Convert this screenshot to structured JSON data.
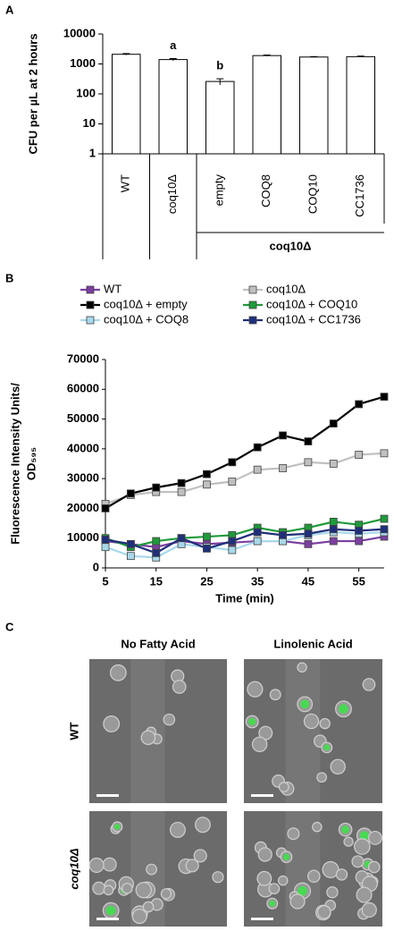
{
  "panel_labels": [
    "A",
    "B",
    "C"
  ],
  "chart_data": [
    {
      "type": "bar",
      "y_label": "CFU per µL at 2 hours",
      "categories": [
        "WT",
        "coq10Δ",
        "empty",
        "COQ8",
        "COQ10",
        "CC1736"
      ],
      "values": [
        2100,
        1400,
        260,
        1900,
        1700,
        1750
      ],
      "errors": [
        120,
        110,
        60,
        80,
        60,
        80
      ],
      "annotations": [
        null,
        "a",
        "b",
        null,
        null,
        null
      ],
      "group_label": "coq10Δ",
      "color": "#ffffff",
      "log_scale": true,
      "ylim": [
        1,
        10000
      ],
      "yticks": [
        1,
        10,
        100,
        1000,
        10000
      ]
    },
    {
      "type": "line",
      "y_label": [
        "Fluorescence Intensity Units/",
        "OD₅₉₅"
      ],
      "x_label": "Time (min)",
      "x": [
        5,
        10,
        15,
        20,
        25,
        30,
        35,
        40,
        45,
        50,
        55,
        60
      ],
      "series": [
        {
          "name": "WT",
          "color": "#7b3fa0",
          "values": [
            9000,
            8000,
            7000,
            9000,
            8000,
            8500,
            9000,
            9000,
            8000,
            9000,
            9000,
            10500
          ]
        },
        {
          "name": "coq10Δ",
          "color": "#c0c0c0",
          "values": [
            21500,
            24500,
            25500,
            25500,
            28000,
            29000,
            33000,
            33500,
            35500,
            35000,
            38000,
            38500
          ]
        },
        {
          "name": "coq10Δ + empty",
          "color": "#000000",
          "values": [
            20000,
            25000,
            27000,
            28500,
            31500,
            35500,
            40500,
            44500,
            42500,
            48500,
            55000,
            57500
          ]
        },
        {
          "name": "coq10Δ + COQ10",
          "color": "#1f9a3a",
          "values": [
            10000,
            7000,
            9000,
            10000,
            10500,
            11000,
            13500,
            12000,
            13500,
            15500,
            14500,
            16500
          ]
        },
        {
          "name": "coq10Δ + COQ8",
          "color": "#a8d8ea",
          "values": [
            7000,
            4000,
            3500,
            8000,
            7000,
            6000,
            9000,
            9000,
            11000,
            12000,
            11500,
            12000
          ]
        },
        {
          "name": "coq10Δ + CC1736",
          "color": "#1f2f7a",
          "values": [
            9500,
            8000,
            5000,
            10000,
            6500,
            9000,
            12000,
            11000,
            11500,
            13000,
            12500,
            13000
          ]
        }
      ],
      "xlim": [
        5,
        60
      ],
      "xticks": [
        5,
        15,
        25,
        35,
        45,
        55
      ],
      "ylim": [
        0,
        70000
      ],
      "yticks": [
        0,
        10000,
        20000,
        30000,
        40000,
        50000,
        60000,
        70000
      ]
    }
  ],
  "micrographs": {
    "columns": [
      "No Fatty Acid",
      "Linolenic Acid"
    ],
    "rows": [
      "WT",
      "coq10Δ"
    ]
  }
}
